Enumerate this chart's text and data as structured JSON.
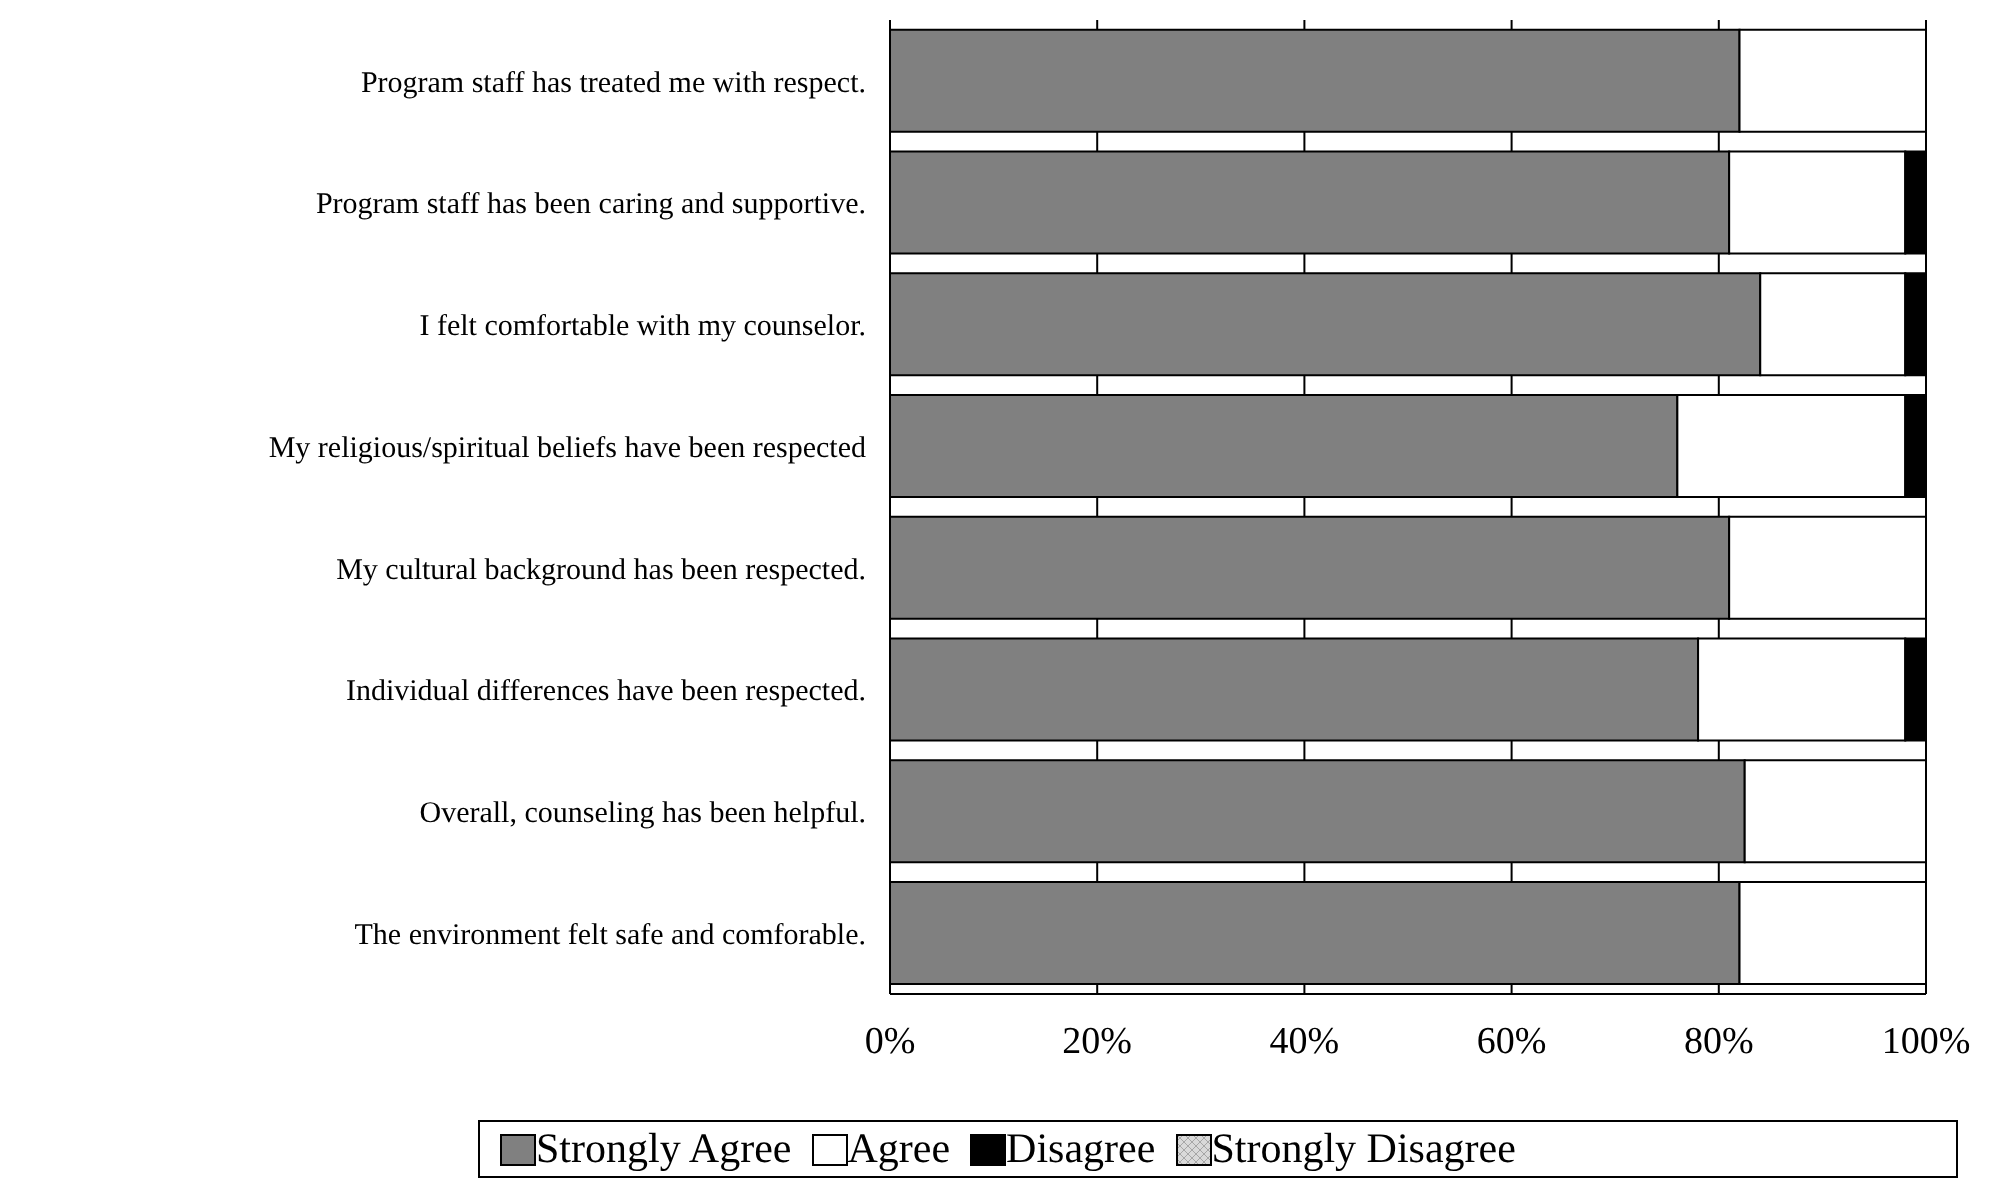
{
  "chart_data": {
    "type": "bar",
    "orientation": "horizontal",
    "stacked": true,
    "categories": [
      "Program staff has treated me with respect.",
      "Program staff has been caring and supportive.",
      "I felt comfortable with my counselor.",
      "My religious/spiritual beliefs have been respected",
      "My cultural background has been respected.",
      "Individual differences have been respected.",
      "Overall, counseling has been helpful.",
      "The environment felt safe and comforable."
    ],
    "series": [
      {
        "name": "Strongly Agree",
        "color": "#808080",
        "values": [
          82,
          81,
          84,
          76,
          81,
          78,
          82.5,
          82
        ]
      },
      {
        "name": "Agree",
        "color": "#ffffff",
        "values": [
          18,
          17,
          14,
          22,
          19,
          20,
          17.5,
          18
        ]
      },
      {
        "name": "Disagree",
        "color": "#000000",
        "values": [
          0,
          2,
          2,
          2,
          0,
          2,
          0,
          0
        ]
      },
      {
        "name": "Strongly Disagree",
        "color": "#d9d9d9",
        "values": [
          0,
          0,
          0,
          0,
          0,
          0,
          0,
          0
        ]
      }
    ],
    "xlim": [
      0,
      100
    ],
    "xticks": [
      {
        "value": 0,
        "label": "0%"
      },
      {
        "value": 20,
        "label": "20%"
      },
      {
        "value": 40,
        "label": "40%"
      },
      {
        "value": 60,
        "label": "60%"
      },
      {
        "value": 80,
        "label": "80%"
      },
      {
        "value": 100,
        "label": "100%"
      }
    ],
    "grid": "x",
    "legend": "bottom"
  }
}
